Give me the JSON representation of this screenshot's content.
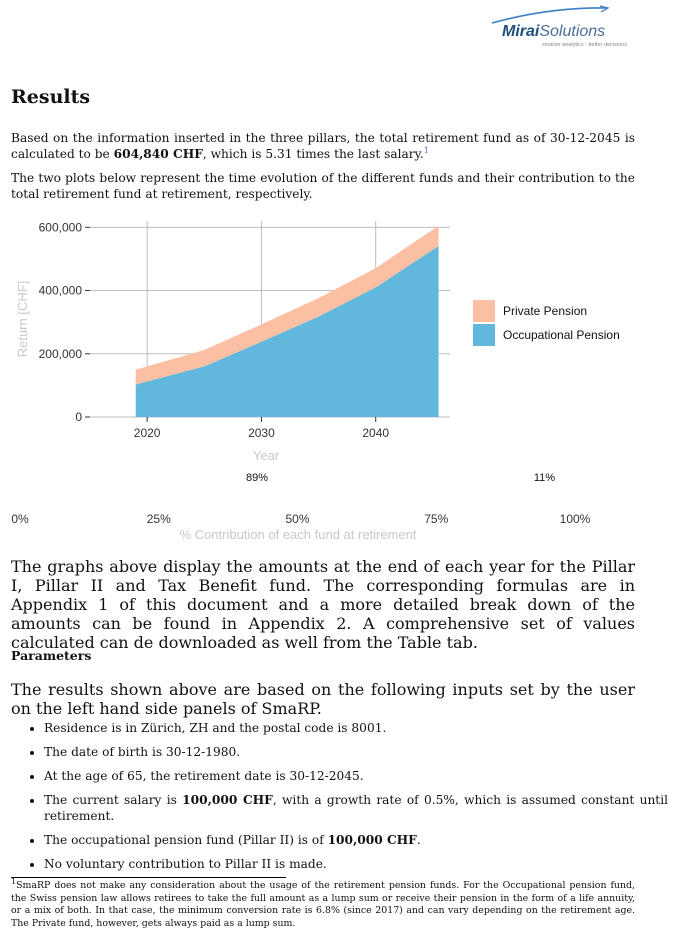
{
  "header": {
    "logo_brand_bold": "Mirai",
    "logo_brand_rest": "Solutions",
    "logo_tagline": "smarter analytics - better decisions"
  },
  "title": "Results",
  "intro": {
    "p1_a": "Based on the information inserted in the three pillars, the total retirement fund as of 30-12-2045 is calculated to be ",
    "p1_amount": "604,840 CHF",
    "p1_b": ", which is 5.31 times the last salary.",
    "p1_footnote_mark": "1",
    "p2": "The two plots below represent the time evolution of the different funds and their contribution to the total retirement fund at retirement, respectively."
  },
  "chart_data": [
    {
      "type": "area",
      "stacked": true,
      "x": [
        2019,
        2025,
        2030,
        2035,
        2040,
        2045.5
      ],
      "series": [
        {
          "name": "Occupational Pension",
          "color": "#62b8dc",
          "values": [
            103000,
            160000,
            238000,
            318000,
            410000,
            541000
          ]
        },
        {
          "name": "Private Pension",
          "color": "#fbbfa3",
          "values": [
            47000,
            52000,
            55000,
            58000,
            61000,
            64000
          ]
        }
      ],
      "xticks": [
        "2020",
        "2030",
        "2040"
      ],
      "yticks": [
        "0",
        "200,000",
        "400,000",
        "600,000"
      ],
      "xlim": [
        2015,
        2046.5
      ],
      "ylim": [
        0,
        620000
      ],
      "xlabel": "Year",
      "ylabel": "Return [CHF]",
      "legend_position": "right",
      "grid": true
    },
    {
      "type": "bar",
      "orientation": "horizontal-stacked",
      "series": [
        {
          "name": "Occupational Pension",
          "value": 89,
          "label": "89%"
        },
        {
          "name": "Private Pension",
          "value": 11,
          "label": "11%"
        }
      ],
      "xticks": [
        "0%",
        "25%",
        "50%",
        "75%",
        "100%"
      ],
      "xlabel": "% Contribution of each fund at retirement"
    }
  ],
  "after_charts": "The graphs above display the amounts at the end of each year for the Pillar I, Pillar II and Tax Benefit fund. The corresponding formulas are in Appendix 1 of this document and a more detailed break down of the amounts can be found in Appendix 2. A comprehensive set of values calculated can de downloaded as well from the Table tab.",
  "parameters": {
    "heading": "Parameters",
    "intro": "The results shown above are based on the following inputs set by the user on the left hand side panels of SmaRP.",
    "items": {
      "i1": "Residence is in Zürich, ZH and the postal code is 8001.",
      "i2": "The date of birth is 30-12-1980.",
      "i3": "At the age of 65, the retirement date is 30-12-2045.",
      "i4_a": "The current salary is ",
      "i4_b": "100,000 CHF",
      "i4_c": ", with a growth rate of 0.5%, which is assumed constant until retirement.",
      "i5_a": "The occupational pension fund (Pillar II) is of ",
      "i5_b": "100,000 CHF",
      "i5_c": ".",
      "i6": "No voluntary contribution to Pillar II is made."
    }
  },
  "footnote": {
    "mark": "1",
    "text": "SmaRP does not make any consideration about the usage of the retirement pension funds. For the Occupational pension fund, the Swiss pension law allows retirees to take the full amount as a lump sum or receive their pension in the form of a life annuity, or a mix of both. In that case, the minimum conversion rate is 6.8% (since 2017) and can vary depending on the retirement age. The Private fund, however, gets always paid as a lump sum."
  }
}
